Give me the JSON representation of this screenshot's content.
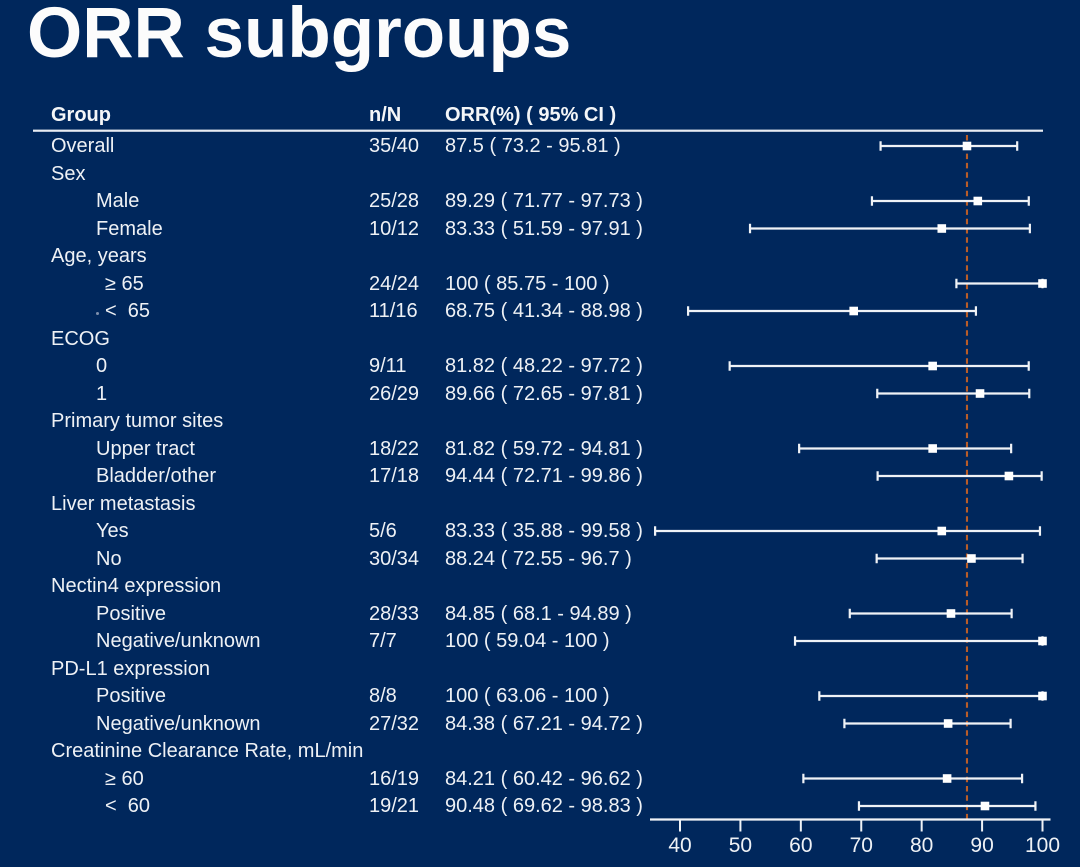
{
  "title": "ORR subgroups",
  "colors": {
    "background": "#00275c",
    "text": "#eef1f5",
    "plot_elements": "#eff2f6",
    "marker": "#ffffff",
    "reference_line": "#b95d28",
    "header_rule": "#e8ecf2"
  },
  "table": {
    "columns": [
      {
        "key": "group",
        "label": "Group"
      },
      {
        "key": "nN",
        "label": "n/N"
      },
      {
        "key": "orr",
        "label": "ORR(%) ( 95% CI )"
      }
    ]
  },
  "chart_data": {
    "type": "scatter",
    "variant": "forest-plot",
    "title": "ORR subgroups",
    "xlabel": "",
    "ylabel": "",
    "xlim": [
      35,
      101.4
    ],
    "xticks": [
      40,
      50,
      60,
      70,
      80,
      90,
      100
    ],
    "grid": false,
    "legend": false,
    "reference_line": {
      "value": 87.5,
      "style": "dashed"
    },
    "columns": [
      "Group",
      "n/N",
      "ORR(%) ( 95% CI )"
    ],
    "rows": [
      {
        "label": "Overall",
        "indent": 0,
        "nN": "35/40",
        "orr": "87.5 ( 73.2 - 95.81 )",
        "est": 87.5,
        "lo": 73.2,
        "hi": 95.81
      },
      {
        "label": "Sex",
        "indent": 0
      },
      {
        "label": "Male",
        "indent": 1,
        "nN": "25/28",
        "orr": "89.29 ( 71.77 - 97.73 )",
        "est": 89.29,
        "lo": 71.77,
        "hi": 97.73
      },
      {
        "label": "Female",
        "indent": 1,
        "nN": "10/12",
        "orr": "83.33 ( 51.59 - 97.91 )",
        "est": 83.33,
        "lo": 51.59,
        "hi": 97.91
      },
      {
        "label": "Age, years",
        "indent": 0
      },
      {
        "label": "≥ 65",
        "indent": 2,
        "nN": "24/24",
        "orr": "100 ( 85.75 - 100 )",
        "est": 100,
        "lo": 85.75,
        "hi": 100
      },
      {
        "label": "<  65",
        "indent": 2,
        "dot": true,
        "nN": "11/16",
        "orr": "68.75 ( 41.34 - 88.98 )",
        "est": 68.75,
        "lo": 41.34,
        "hi": 88.98
      },
      {
        "label": "ECOG",
        "indent": 0
      },
      {
        "label": "0",
        "indent": 1,
        "nN": "9/11",
        "orr": "81.82 ( 48.22 - 97.72 )",
        "est": 81.82,
        "lo": 48.22,
        "hi": 97.72
      },
      {
        "label": "1",
        "indent": 1,
        "nN": "26/29",
        "orr": "89.66 ( 72.65 - 97.81 )",
        "est": 89.66,
        "lo": 72.65,
        "hi": 97.81
      },
      {
        "label": "Primary tumor sites",
        "indent": 0
      },
      {
        "label": "Upper tract",
        "indent": 1,
        "nN": "18/22",
        "orr": "81.82 ( 59.72 - 94.81 )",
        "est": 81.82,
        "lo": 59.72,
        "hi": 94.81
      },
      {
        "label": "Bladder/other",
        "indent": 1,
        "nN": "17/18",
        "orr": "94.44 ( 72.71 - 99.86 )",
        "est": 94.44,
        "lo": 72.71,
        "hi": 99.86
      },
      {
        "label": "Liver metastasis",
        "indent": 0
      },
      {
        "label": "Yes",
        "indent": 1,
        "nN": "5/6",
        "orr": "83.33 ( 35.88 - 99.58 )",
        "est": 83.33,
        "lo": 35.88,
        "hi": 99.58
      },
      {
        "label": "No",
        "indent": 1,
        "nN": "30/34",
        "orr": "88.24 ( 72.55 - 96.7 )",
        "est": 88.24,
        "lo": 72.55,
        "hi": 96.7
      },
      {
        "label": "Nectin4 expression",
        "indent": 0
      },
      {
        "label": "Positive",
        "indent": 1,
        "nN": "28/33",
        "orr": "84.85 ( 68.1 - 94.89 )",
        "est": 84.85,
        "lo": 68.1,
        "hi": 94.89
      },
      {
        "label": "Negative/unknown",
        "indent": 1,
        "nN": "7/7",
        "orr": "100 ( 59.04 - 100 )",
        "est": 100,
        "lo": 59.04,
        "hi": 100
      },
      {
        "label": "PD-L1 expression",
        "indent": 0
      },
      {
        "label": "Positive",
        "indent": 1,
        "nN": "8/8",
        "orr": "100 ( 63.06 - 100 )",
        "est": 100,
        "lo": 63.06,
        "hi": 100
      },
      {
        "label": "Negative/unknown",
        "indent": 1,
        "nN": "27/32",
        "orr": "84.38 ( 67.21 - 94.72 )",
        "est": 84.38,
        "lo": 67.21,
        "hi": 94.72
      },
      {
        "label": "Creatinine Clearance Rate, mL/min",
        "indent": 0
      },
      {
        "label": "≥ 60",
        "indent": 2,
        "nN": "16/19",
        "orr": "84.21 ( 60.42 - 96.62 )",
        "est": 84.21,
        "lo": 60.42,
        "hi": 96.62
      },
      {
        "label": "<  60",
        "indent": 2,
        "nN": "19/21",
        "orr": "90.48 ( 69.62 - 98.83 )",
        "est": 90.48,
        "lo": 69.62,
        "hi": 98.83
      }
    ]
  }
}
